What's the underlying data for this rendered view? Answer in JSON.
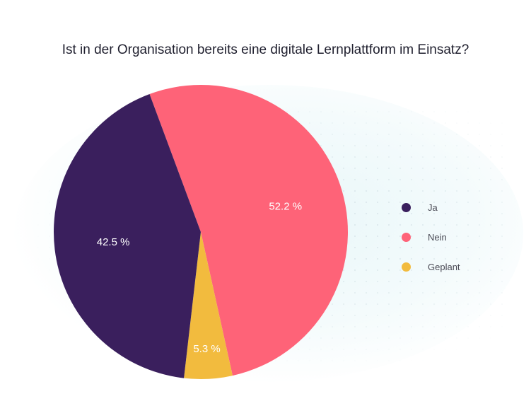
{
  "chart_data": {
    "type": "pie",
    "title": "Ist in der Organisation bereits eine digitale Lernplattform im Einsatz?",
    "categories": [
      "Ja",
      "Nein",
      "Geplant"
    ],
    "values": [
      42.5,
      52.2,
      5.3
    ],
    "labels": [
      "42.5 %",
      "52.2 %",
      "5.3 %"
    ],
    "colors": [
      "#3a1f5d",
      "#fe6378",
      "#f2bb3e"
    ],
    "label_color": "#ffffff",
    "legend_placement": "right"
  }
}
